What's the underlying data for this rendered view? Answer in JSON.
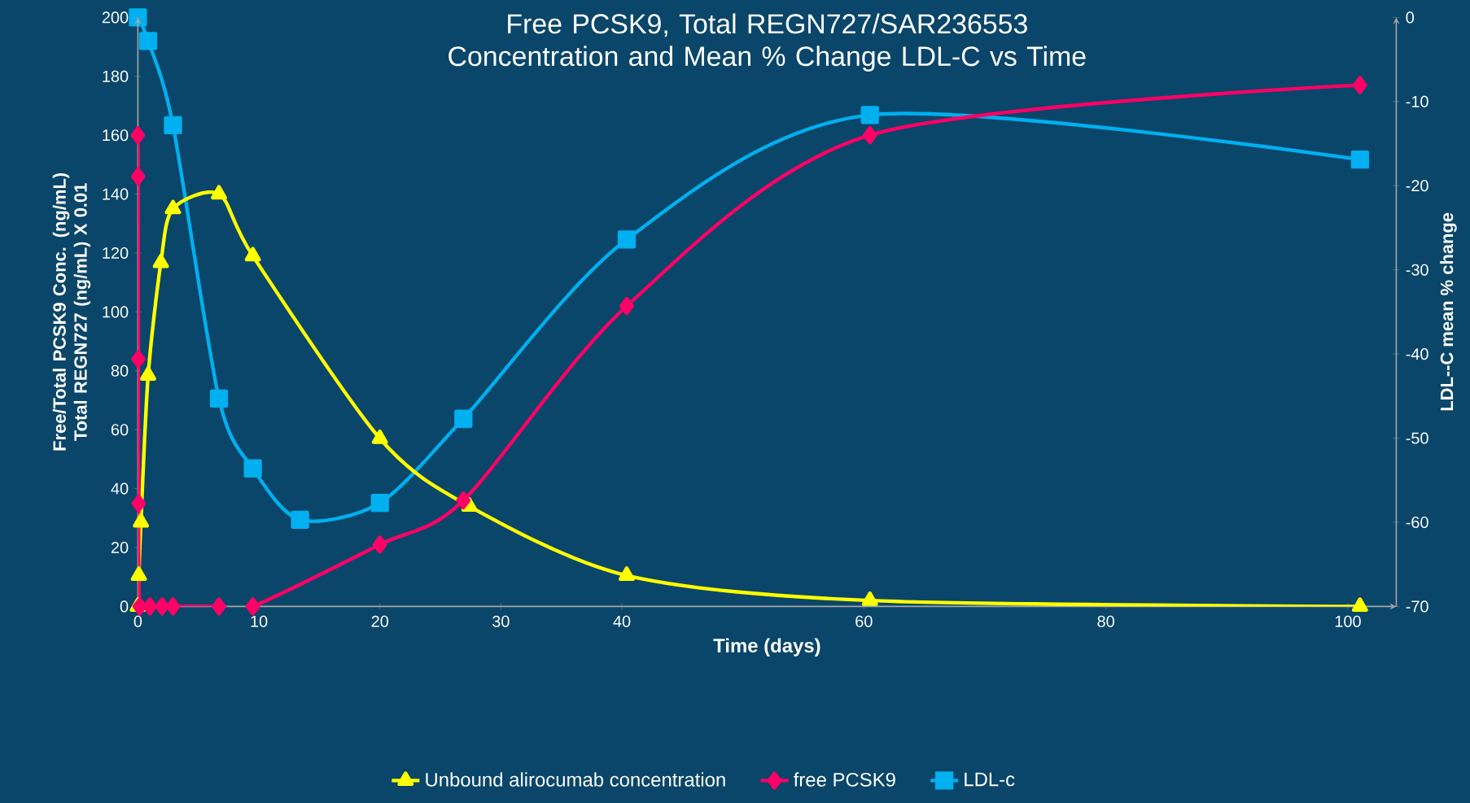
{
  "chart_data": {
    "type": "line",
    "title": "Free PCSK9, Total REGN727/SAR236553 Concentration and Mean % Change LDL-C vs Time",
    "xlabel": "Time (days)",
    "ylabel": "Free/Total PCSK9 Conc. (ng/mL) Total REGN727 (ng/mL)  X 0.01",
    "y2label": "LDL--C mean % change",
    "xlim": [
      0,
      104
    ],
    "xticks": [
      0,
      10,
      20,
      30,
      40,
      60,
      80,
      100
    ],
    "ylim": [
      0,
      200
    ],
    "yticks": [
      0,
      20,
      40,
      60,
      80,
      100,
      120,
      140,
      160,
      180,
      200
    ],
    "y2lim": [
      -70,
      0
    ],
    "y2ticks": [
      -70,
      -60,
      -50,
      -40,
      -30,
      -20,
      -10,
      0
    ],
    "legend": "bottom",
    "grid": false,
    "series": [
      {
        "name": "Unbound alirocumab concentration",
        "marker": "triangle",
        "color": "#ffff00",
        "x": [
          0,
          0.08,
          0.25,
          0.85,
          1.9,
          2.9,
          6.7,
          9.5,
          20,
          27.4,
          40.4,
          60.5,
          101
        ],
        "values": [
          0,
          10.5,
          28.6,
          78.5,
          116.7,
          135,
          140,
          119,
          57,
          34,
          10.5,
          2,
          0
        ]
      },
      {
        "name": "free PCSK9",
        "marker": "diamond",
        "color": "#ff0066",
        "x": [
          0,
          0.02,
          0.04,
          0.06,
          0.15,
          1,
          2,
          2.9,
          6.7,
          9.5,
          20,
          26.9,
          40.4,
          60.5,
          101
        ],
        "values": [
          160,
          146,
          84,
          35,
          0,
          0,
          0,
          0,
          0,
          0,
          21,
          36,
          102,
          160,
          177
        ]
      },
      {
        "name": "LDL-c",
        "marker": "square",
        "color": "#00b0f0",
        "axis": "y2",
        "x": [
          0,
          0.85,
          2.9,
          6.7,
          9.5,
          13.4,
          20,
          26.9,
          40.4,
          60.5,
          101
        ],
        "values": [
          0,
          -2.8,
          -12.8,
          -45.3,
          -53.6,
          -59.7,
          -57.7,
          -47.7,
          -26.4,
          -11.6,
          -16.9
        ]
      }
    ]
  }
}
